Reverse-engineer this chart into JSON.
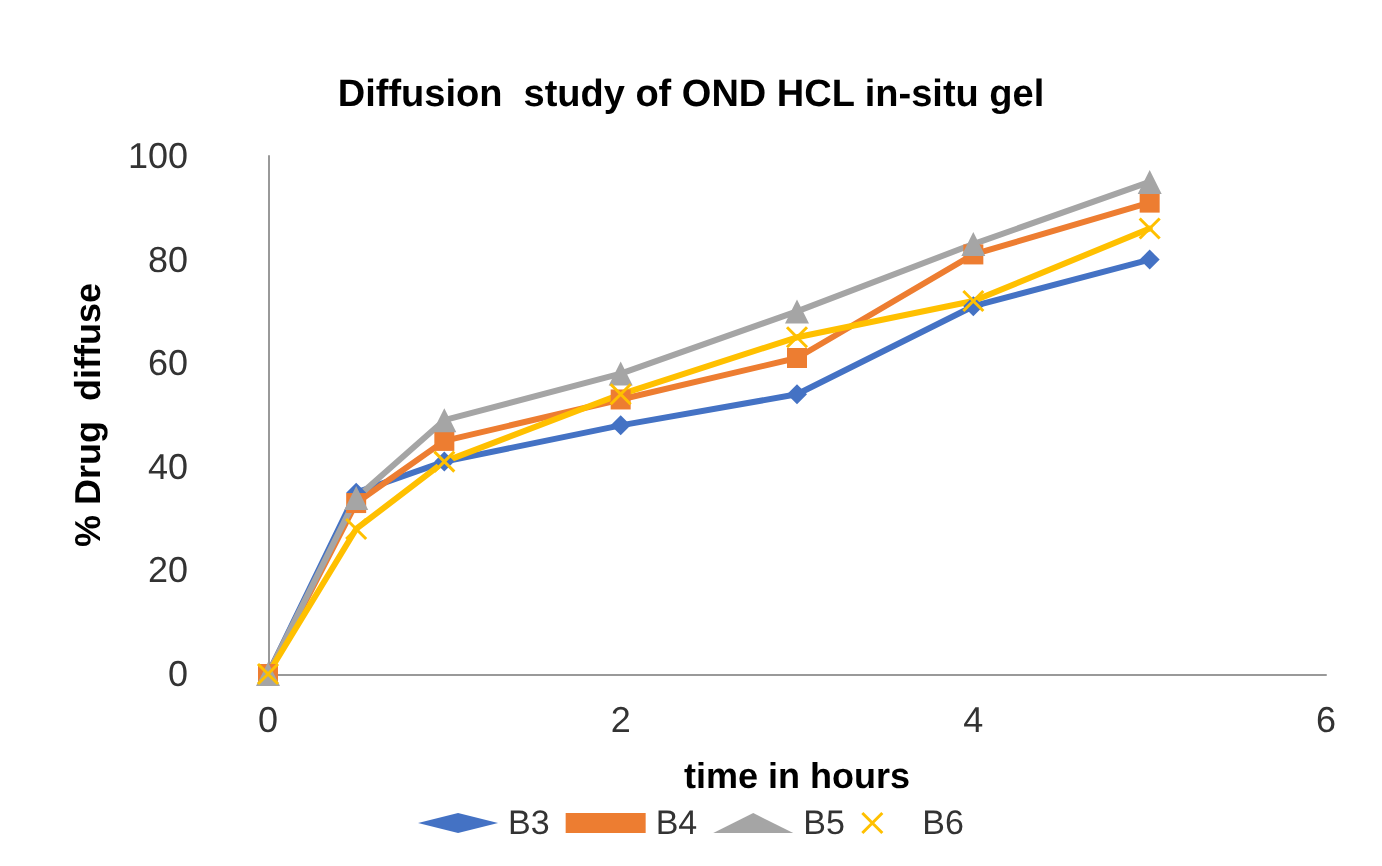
{
  "chart_data": {
    "type": "line",
    "title": "Diffusion  study of OND HCL in-situ gel",
    "xlabel": "time in hours",
    "ylabel": "% Drug  diffuse",
    "x": [
      0,
      0.5,
      1,
      2,
      3,
      4,
      5
    ],
    "series": [
      {
        "name": "B3",
        "color": "#4472c4",
        "marker": "diamond",
        "values": [
          0,
          35,
          41,
          48,
          54,
          71,
          80
        ]
      },
      {
        "name": "B4",
        "color": "#ed7d31",
        "marker": "square",
        "values": [
          0,
          33,
          45,
          53,
          61,
          81,
          91
        ]
      },
      {
        "name": "B5",
        "color": "#a5a5a5",
        "marker": "triangle",
        "values": [
          0,
          34,
          49,
          58,
          70,
          83,
          95
        ]
      },
      {
        "name": "B6",
        "color": "#ffc000",
        "marker": "cross",
        "values": [
          0,
          28,
          41,
          54,
          65,
          72,
          86
        ]
      }
    ],
    "xlim": [
      0,
      6
    ],
    "xticks": [
      0,
      2,
      4,
      6
    ],
    "ylim": [
      0,
      100
    ],
    "yticks": [
      0,
      20,
      40,
      60,
      80,
      100
    ],
    "grid": false,
    "legend": "bottom"
  }
}
